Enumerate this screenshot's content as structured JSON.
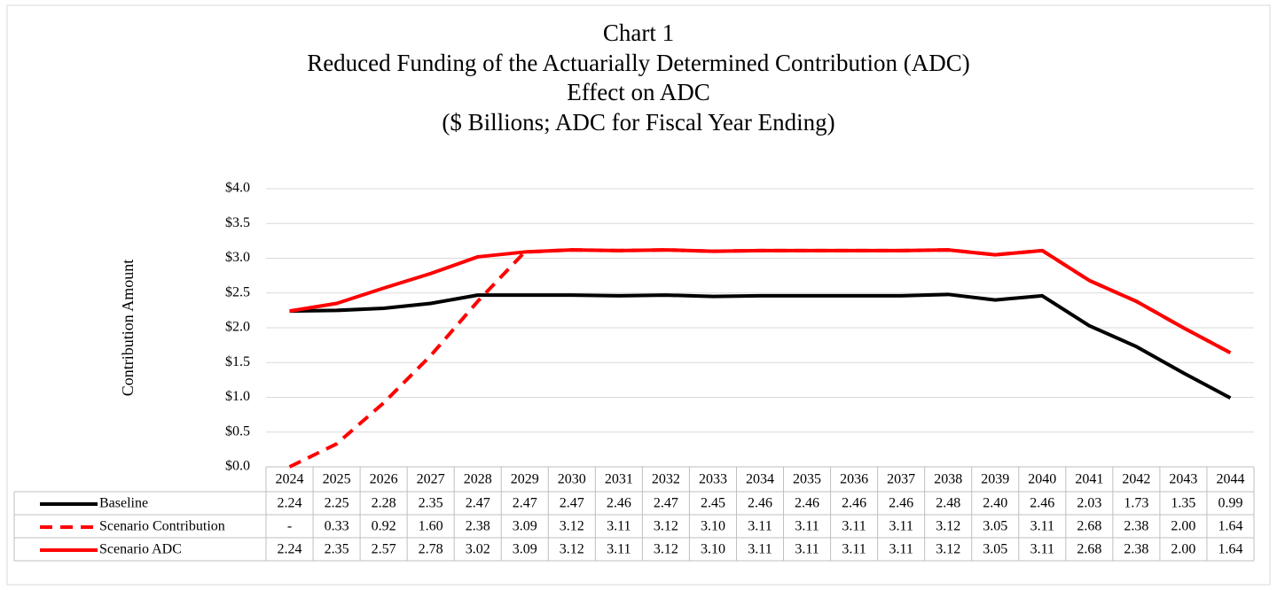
{
  "chart_data": {
    "type": "line",
    "title": [
      "Chart 1",
      "Reduced Funding of the Actuarially Determined Contribution (ADC)",
      "Effect on ADC",
      "($ Billions; ADC for Fiscal Year Ending)"
    ],
    "y_label": "Contribution Amount",
    "categories": [
      "2024",
      "2025",
      "2026",
      "2027",
      "2028",
      "2029",
      "2030",
      "2031",
      "2032",
      "2033",
      "2034",
      "2035",
      "2036",
      "2037",
      "2038",
      "2039",
      "2040",
      "2041",
      "2042",
      "2043",
      "2044"
    ],
    "ylim": [
      0,
      4
    ],
    "yticks": [
      {
        "value": 0,
        "label": "$0.0"
      },
      {
        "value": 0.5,
        "label": "$0.5"
      },
      {
        "value": 1,
        "label": "$1.0"
      },
      {
        "value": 1.5,
        "label": "$1.5"
      },
      {
        "value": 2,
        "label": "$2.0"
      },
      {
        "value": 2.5,
        "label": "$2.5"
      },
      {
        "value": 3,
        "label": "$3.0"
      },
      {
        "value": 3.5,
        "label": "$3.5"
      },
      {
        "value": 4,
        "label": "$4.0"
      }
    ],
    "grid": true,
    "series": [
      {
        "name": "Baseline",
        "color": "#000000",
        "dashed": false,
        "values": [
          2.24,
          2.25,
          2.28,
          2.35,
          2.47,
          2.47,
          2.47,
          2.46,
          2.47,
          2.45,
          2.46,
          2.46,
          2.46,
          2.46,
          2.48,
          2.4,
          2.46,
          2.03,
          1.73,
          1.35,
          0.99
        ],
        "value_labels": [
          "2.24",
          "2.25",
          "2.28",
          "2.35",
          "2.47",
          "2.47",
          "2.47",
          "2.46",
          "2.47",
          "2.45",
          "2.46",
          "2.46",
          "2.46",
          "2.46",
          "2.48",
          "2.40",
          "2.46",
          "2.03",
          "1.73",
          "1.35",
          "0.99"
        ]
      },
      {
        "name": "Scenario Contribution",
        "color": "#ff0000",
        "dashed": true,
        "values": [
          0,
          0.33,
          0.92,
          1.6,
          2.38,
          3.09,
          3.12,
          3.11,
          3.12,
          3.1,
          3.11,
          3.11,
          3.11,
          3.11,
          3.12,
          3.05,
          3.11,
          2.68,
          2.38,
          2,
          1.64
        ],
        "value_labels": [
          "-",
          "0.33",
          "0.92",
          "1.60",
          "2.38",
          "3.09",
          "3.12",
          "3.11",
          "3.12",
          "3.10",
          "3.11",
          "3.11",
          "3.11",
          "3.11",
          "3.12",
          "3.05",
          "3.11",
          "2.68",
          "2.38",
          "2.00",
          "1.64"
        ]
      },
      {
        "name": "Scenario ADC",
        "color": "#ff0000",
        "dashed": false,
        "values": [
          2.24,
          2.35,
          2.57,
          2.78,
          3.02,
          3.09,
          3.12,
          3.11,
          3.12,
          3.1,
          3.11,
          3.11,
          3.11,
          3.11,
          3.12,
          3.05,
          3.11,
          2.68,
          2.38,
          2,
          1.64
        ],
        "value_labels": [
          "2.24",
          "2.35",
          "2.57",
          "2.78",
          "3.02",
          "3.09",
          "3.12",
          "3.11",
          "3.12",
          "3.10",
          "3.11",
          "3.11",
          "3.11",
          "3.11",
          "3.12",
          "3.05",
          "3.11",
          "2.68",
          "2.38",
          "2.00",
          "1.64"
        ]
      }
    ]
  }
}
